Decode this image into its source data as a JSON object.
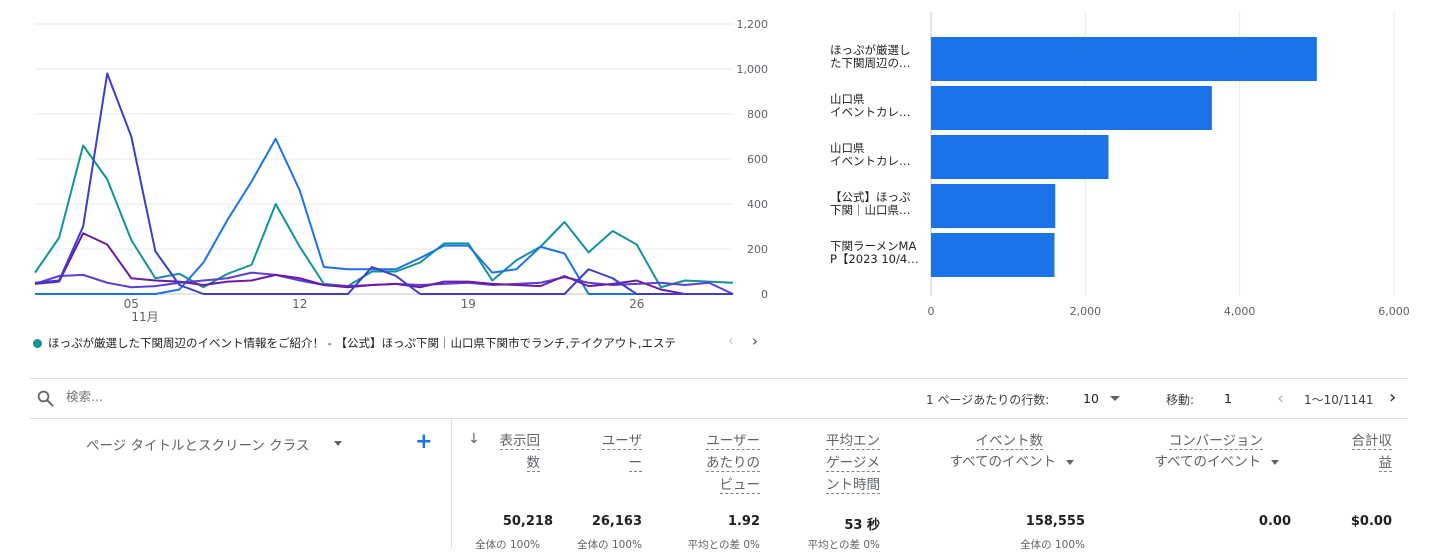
{
  "line_chart": {
    "y_ticks": [
      "1,200",
      "1,000",
      "800",
      "600",
      "400",
      "200",
      "0"
    ],
    "x_ticks": [
      "05",
      "12",
      "19",
      "26"
    ],
    "x_month": "11月"
  },
  "chart_data": [
    {
      "type": "line",
      "x": [
        1,
        2,
        3,
        4,
        5,
        6,
        7,
        8,
        9,
        10,
        11,
        12,
        13,
        14,
        15,
        16,
        17,
        18,
        19,
        20,
        21,
        22,
        23,
        24,
        25,
        26,
        27,
        28,
        29,
        30
      ],
      "ylim": [
        0,
        1200
      ],
      "y_ticks": [
        0,
        200,
        400,
        600,
        800,
        1000,
        1200
      ],
      "x_tick_labels": [
        "05",
        "12",
        "19",
        "26"
      ],
      "x_month_label": "11月",
      "series": [
        {
          "name": "ほっぷが厳選した下関周辺のイベント情報をご紹介！ - 【公式】ほっぷ下関｜山口県下関市でランチ,テイクアウト,エステ",
          "color": "#12939a",
          "values": [
            95,
            250,
            660,
            510,
            240,
            70,
            90,
            30,
            90,
            130,
            400,
            210,
            45,
            35,
            100,
            100,
            140,
            225,
            225,
            60,
            150,
            210,
            320,
            185,
            280,
            220,
            30,
            60,
            55,
            50
          ]
        },
        {
          "name": "",
          "color": "#1a73e8",
          "values": [
            0,
            0,
            0,
            0,
            0,
            0,
            20,
            140,
            330,
            500,
            690,
            460,
            120,
            110,
            110,
            110,
            160,
            215,
            215,
            95,
            110,
            210,
            180,
            0,
            0,
            0,
            0,
            0,
            0,
            0
          ]
        },
        {
          "name": "",
          "color": "#5b3fd6",
          "values": [
            45,
            80,
            85,
            50,
            30,
            35,
            50,
            60,
            70,
            95,
            85,
            60,
            40,
            35,
            40,
            45,
            40,
            45,
            50,
            40,
            45,
            50,
            75,
            50,
            40,
            45,
            50,
            40,
            50,
            0
          ]
        },
        {
          "name": "",
          "color": "#6d1ba6",
          "values": [
            45,
            55,
            270,
            220,
            70,
            60,
            55,
            40,
            55,
            60,
            85,
            70,
            40,
            30,
            40,
            45,
            30,
            55,
            55,
            45,
            40,
            35,
            80,
            35,
            45,
            60,
            20,
            0,
            0,
            0
          ]
        },
        {
          "name": "",
          "color": "#3f3dc8",
          "values": [
            50,
            60,
            300,
            980,
            700,
            190,
            40,
            0,
            0,
            0,
            0,
            0,
            0,
            0,
            120,
            80,
            0,
            0,
            0,
            0,
            0,
            0,
            0,
            110,
            70,
            0,
            0,
            0,
            0,
            0
          ]
        }
      ]
    },
    {
      "type": "bar",
      "orientation": "horizontal",
      "categories": [
        "ほっぷが厳選した下関周辺の…",
        "山口県 イベントカレ…",
        "山口県 イベントカレ…",
        "【公式】ほっぷ下関｜山口県…",
        "下関ラーメンMAP【2023 10/4…"
      ],
      "values": [
        5000,
        3640,
        2300,
        1610,
        1600
      ],
      "xlim": [
        0,
        6000
      ],
      "x_ticks": [
        0,
        2000,
        4000,
        6000
      ],
      "color": "#1a73e8"
    }
  ],
  "bar_chart": {
    "labels": [
      [
        "ほっぷが厳選し",
        "た下関周辺の…"
      ],
      [
        "山口県",
        "イベントカレ…"
      ],
      [
        "山口県",
        "イベントカレ…"
      ],
      [
        "【公式】ほっぷ",
        "下関｜山口県…"
      ],
      [
        "下関ラーメンMA",
        "P【2023 10/4…"
      ]
    ],
    "x_ticks": [
      "0",
      "2,000",
      "4,000",
      "6,000"
    ]
  },
  "legend": {
    "item_label": "ほっぷが厳選した下関周辺のイベント情報をご紹介！ - 【公式】ほっぷ下関｜山口県下関市でランチ,テイクアウト,エステ",
    "item_color": "#12939a",
    "prev_icon": "chevron-left-icon",
    "next_icon": "chevron-right-icon"
  },
  "toolbar": {
    "search_placeholder": "検索...",
    "rows_per_page_label": "1 ページあたりの行数:",
    "rows_per_page_value": "10",
    "goto_label": "移動:",
    "goto_value": "1",
    "range_text": "1〜10/1141"
  },
  "table": {
    "dimension_header": "ページ タイトルとスクリーン クラス",
    "add_icon": "+",
    "sort_icon": "↓",
    "metrics": [
      {
        "lines": [
          "表示回",
          "数"
        ],
        "total": "50,218",
        "sub": "全体の 100%"
      },
      {
        "lines": [
          "ユーザ",
          "ー"
        ],
        "total": "26,163",
        "sub": "全体の 100%"
      },
      {
        "lines": [
          "ユーザー",
          "あたりの",
          "ビュー"
        ],
        "total": "1.92",
        "sub": "平均との差 0%"
      },
      {
        "lines": [
          "平均エン",
          "ゲージメ",
          "ント時間"
        ],
        "total": "53 秒",
        "sub": "平均との差 0%"
      },
      {
        "lines": [
          "イベント数"
        ],
        "selector": "すべてのイベント",
        "total": "158,555",
        "sub": "全体の 100%"
      },
      {
        "lines": [
          "コンバージョン"
        ],
        "selector": "すべてのイベント",
        "total": "0.00",
        "sub": ""
      },
      {
        "lines": [
          "合計収",
          "益"
        ],
        "total": "$0.00",
        "sub": ""
      }
    ]
  },
  "colors": {
    "accent": "#1a73e8",
    "grid": "#e8eaed",
    "text_muted": "#5f6368"
  }
}
